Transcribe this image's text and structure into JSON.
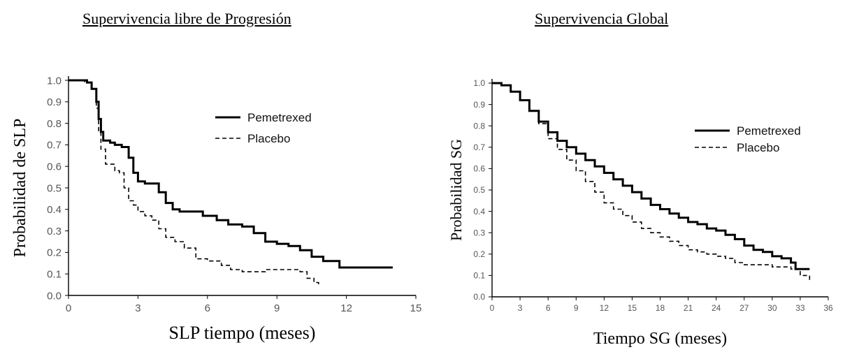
{
  "chart_data": [
    {
      "type": "line",
      "title": "Supervivencia libre de Progresión",
      "xlabel": "SLP tiempo (meses)",
      "ylabel": "Probabilidad de SLP",
      "xlim": [
        0,
        15
      ],
      "ylim": [
        0,
        1
      ],
      "xticks": [
        "0",
        "3",
        "6",
        "9",
        "12",
        "15"
      ],
      "yticks": [
        "0.0",
        "0.1",
        "0.2",
        "0.3",
        "0.4",
        "0.5",
        "0.6",
        "0.7",
        "0.8",
        "0.9",
        "1.0"
      ],
      "legend_position": "top-right",
      "grid": false,
      "series": [
        {
          "name": "Pemetrexed",
          "style": "solid",
          "x": [
            0,
            0.4,
            0.8,
            1.0,
            1.2,
            1.3,
            1.4,
            1.5,
            1.8,
            2.0,
            2.3,
            2.6,
            2.8,
            3.0,
            3.3,
            3.6,
            3.9,
            4.2,
            4.5,
            4.8,
            5.2,
            5.8,
            6.4,
            6.9,
            7.5,
            8.0,
            8.5,
            9.0,
            9.5,
            10.0,
            10.5,
            11.0,
            11.7,
            12.5,
            13.2,
            14.0
          ],
          "y": [
            1.0,
            1.0,
            0.99,
            0.96,
            0.9,
            0.82,
            0.76,
            0.72,
            0.71,
            0.7,
            0.69,
            0.64,
            0.57,
            0.53,
            0.52,
            0.52,
            0.48,
            0.43,
            0.4,
            0.39,
            0.39,
            0.37,
            0.35,
            0.33,
            0.32,
            0.29,
            0.25,
            0.24,
            0.23,
            0.21,
            0.18,
            0.16,
            0.13,
            0.13,
            0.13,
            0.13
          ]
        },
        {
          "name": "Placebo",
          "style": "dashed",
          "x": [
            0,
            0.3,
            0.7,
            1.0,
            1.2,
            1.3,
            1.4,
            1.6,
            2.0,
            2.2,
            2.4,
            2.6,
            2.8,
            3.0,
            3.3,
            3.6,
            3.9,
            4.2,
            4.6,
            5.0,
            5.5,
            6.0,
            6.6,
            7.0,
            7.5,
            8.0,
            8.5,
            9.0,
            9.5,
            10.0,
            10.3,
            10.6,
            10.8
          ],
          "y": [
            1.0,
            1.0,
            0.99,
            0.96,
            0.87,
            0.76,
            0.68,
            0.61,
            0.58,
            0.57,
            0.5,
            0.44,
            0.42,
            0.39,
            0.37,
            0.35,
            0.31,
            0.27,
            0.25,
            0.22,
            0.17,
            0.16,
            0.14,
            0.12,
            0.11,
            0.11,
            0.12,
            0.12,
            0.12,
            0.11,
            0.08,
            0.06,
            0.04
          ]
        }
      ]
    },
    {
      "type": "line",
      "title": "Supervivencia Global",
      "xlabel": "Tiempo SG (meses)",
      "ylabel": "Probabilidad SG",
      "xlim": [
        0,
        36
      ],
      "ylim": [
        0,
        1
      ],
      "xticks": [
        "0",
        "3",
        "6",
        "9",
        "12",
        "15",
        "18",
        "21",
        "24",
        "27",
        "30",
        "33",
        "36"
      ],
      "yticks": [
        "0.0",
        "0.1",
        "0.2",
        "0.3",
        "0.4",
        "0.5",
        "0.6",
        "0.7",
        "0.8",
        "0.9",
        "1.0"
      ],
      "legend_position": "top-right",
      "grid": false,
      "series": [
        {
          "name": "Pemetrexed",
          "style": "solid",
          "x": [
            0,
            1,
            2,
            3,
            4,
            5,
            6,
            7,
            8,
            9,
            10,
            11,
            12,
            13,
            14,
            15,
            16,
            17,
            18,
            19,
            20,
            21,
            22,
            23,
            24,
            25,
            26,
            27,
            28,
            29,
            30,
            31,
            32,
            32.5,
            33,
            34
          ],
          "y": [
            1.0,
            0.99,
            0.96,
            0.92,
            0.87,
            0.82,
            0.77,
            0.73,
            0.7,
            0.67,
            0.64,
            0.61,
            0.58,
            0.55,
            0.52,
            0.49,
            0.46,
            0.43,
            0.41,
            0.39,
            0.37,
            0.35,
            0.34,
            0.32,
            0.31,
            0.29,
            0.27,
            0.24,
            0.22,
            0.21,
            0.19,
            0.18,
            0.16,
            0.13,
            0.13,
            0.13
          ]
        },
        {
          "name": "Placebo",
          "style": "dashed",
          "x": [
            0,
            1,
            2,
            3,
            4,
            5,
            6,
            7,
            8,
            9,
            10,
            11,
            12,
            13,
            14,
            15,
            16,
            17,
            18,
            19,
            20,
            21,
            22,
            23,
            24,
            25,
            26,
            27,
            28,
            29,
            30,
            31,
            32,
            33,
            34
          ],
          "y": [
            1.0,
            0.99,
            0.96,
            0.92,
            0.87,
            0.81,
            0.74,
            0.69,
            0.64,
            0.59,
            0.54,
            0.49,
            0.44,
            0.41,
            0.38,
            0.35,
            0.32,
            0.3,
            0.28,
            0.26,
            0.24,
            0.22,
            0.21,
            0.2,
            0.19,
            0.18,
            0.16,
            0.15,
            0.15,
            0.15,
            0.14,
            0.14,
            0.13,
            0.1,
            0.07
          ]
        }
      ]
    }
  ]
}
